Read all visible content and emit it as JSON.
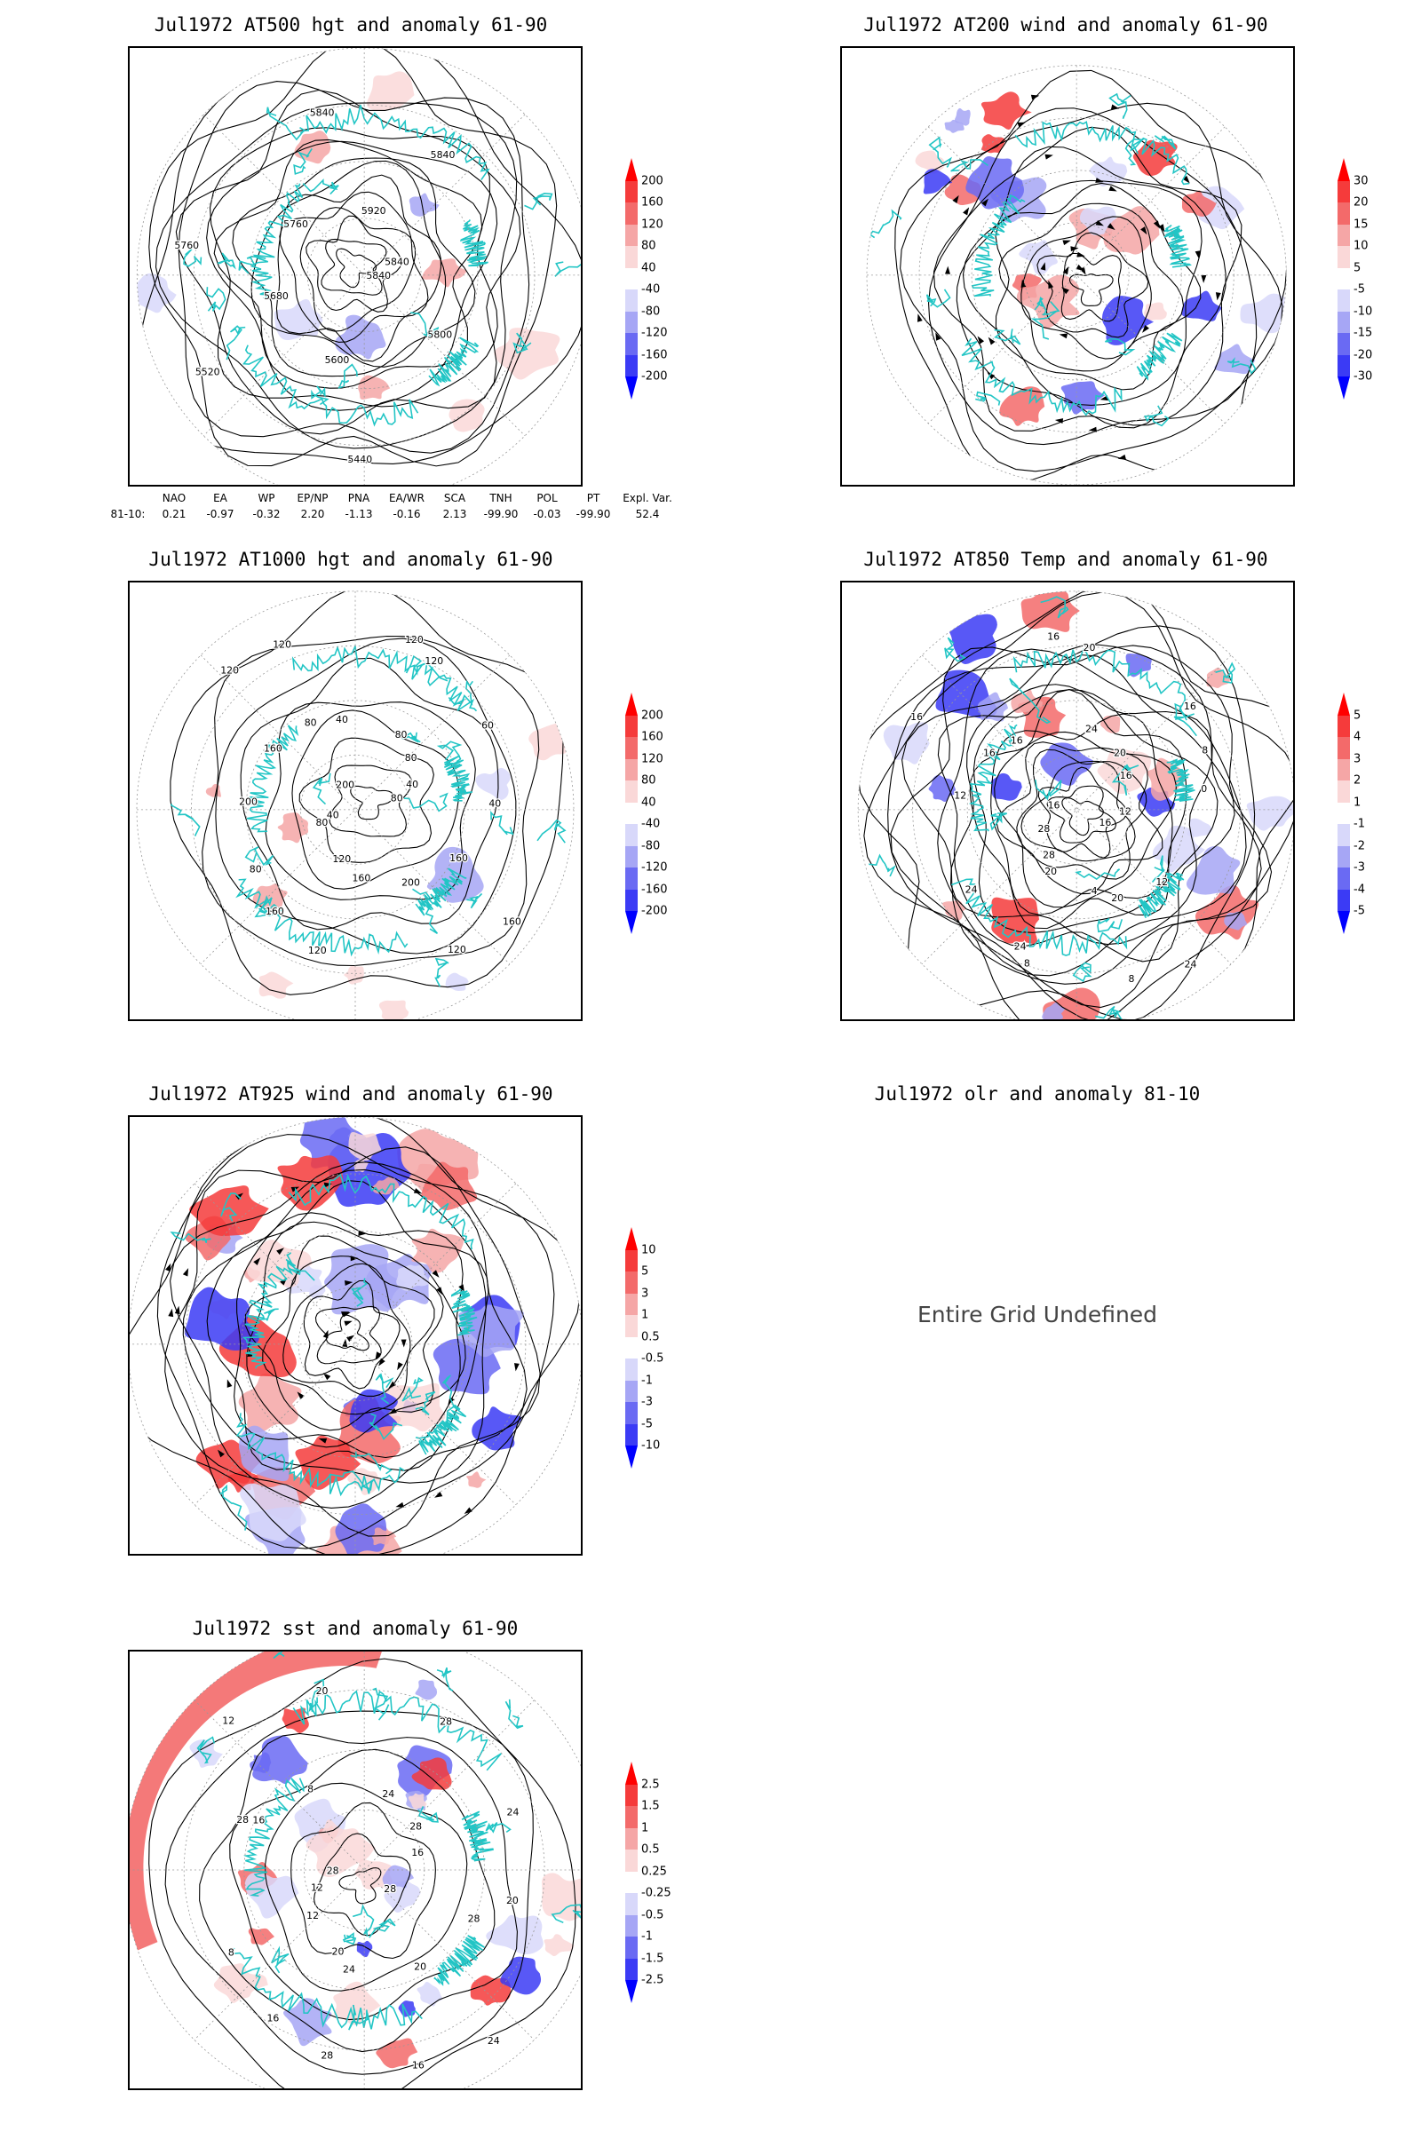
{
  "panels": [
    {
      "id": "at500",
      "title": "Jul1972 AT500 hgt and anomaly 61-90",
      "contour_labels": [
        "5840",
        "5800",
        "5440",
        "5600",
        "5520",
        "5680",
        "5760",
        "5760",
        "5840",
        "5920",
        "5840",
        "5840"
      ],
      "colorbar": [
        "200",
        "160",
        "120",
        "80",
        "40",
        "-40",
        "-80",
        "-120",
        "-160",
        "-200"
      ]
    },
    {
      "id": "at200",
      "title": "Jul1972 AT200 wind and anomaly 61-90",
      "colorbar": [
        "30",
        "20",
        "15",
        "10",
        "5",
        "-5",
        "-10",
        "-15",
        "-20",
        "-30"
      ]
    },
    {
      "id": "at1000",
      "title": "Jul1972 AT1000 hgt and anomaly 61-90",
      "contour_labels": [
        "80",
        "160",
        "160",
        "200",
        "120",
        "160",
        "120",
        "120",
        "160",
        "80",
        "80",
        "40",
        "200",
        "200",
        "160",
        "120",
        "80",
        "120",
        "40",
        "120",
        "80",
        "120",
        "80",
        "60",
        "40",
        "40"
      ],
      "colorbar": [
        "200",
        "160",
        "120",
        "80",
        "40",
        "-40",
        "-80",
        "-120",
        "-160",
        "-200"
      ]
    },
    {
      "id": "at850",
      "title": "Jul1972 AT850 Temp and anomaly 61-90",
      "contour_labels": [
        "16",
        "12",
        "24",
        "20",
        "8",
        "4",
        "8",
        "20",
        "24",
        "28",
        "24",
        "28",
        "12",
        "16",
        "16",
        "16",
        "16",
        "16",
        "24",
        "20",
        "20",
        "16",
        "16",
        "8",
        "12",
        "0"
      ],
      "colorbar": [
        "5",
        "4",
        "3",
        "2",
        "1",
        "-1",
        "-2",
        "-3",
        "-4",
        "-5"
      ]
    },
    {
      "id": "at925",
      "title": "Jul1972 AT925 wind and anomaly 61-90",
      "colorbar": [
        "10",
        "5",
        "3",
        "1",
        "0.5",
        "-0.5",
        "-1",
        "-3",
        "-5",
        "-10"
      ]
    },
    {
      "id": "olr",
      "title": "Jul1972 olr and anomaly 81-10",
      "message": "Entire Grid Undefined"
    },
    {
      "id": "sst",
      "title": "Jul1972 sst and anomaly 61-90",
      "contour_labels": [
        "28",
        "28",
        "24",
        "20",
        "16",
        "24",
        "28",
        "20",
        "16",
        "12",
        "8",
        "12",
        "28",
        "28",
        "16",
        "12",
        "8",
        "20",
        "24",
        "28",
        "28",
        "24",
        "16",
        "20"
      ],
      "colorbar": [
        "2.5",
        "1.5",
        "1",
        "0.5",
        "0.25",
        "-0.25",
        "-0.5",
        "-1",
        "-1.5",
        "-2.5"
      ]
    }
  ],
  "indices": {
    "label": "81-10:",
    "headers": [
      "NAO",
      "EA",
      "WP",
      "EP/NP",
      "PNA",
      "EA/WR",
      "SCA",
      "TNH",
      "POL",
      "PT",
      "Expl. Var."
    ],
    "values": [
      "0.21",
      "-0.97",
      "-0.32",
      "2.20",
      "-1.13",
      "-0.16",
      "2.13",
      "-99.90",
      "-0.03",
      "-99.90",
      "52.4"
    ]
  },
  "colors": {
    "coast": "#22c5c5",
    "contour": "#000000",
    "anomaly_scale": [
      "#ff0000",
      "#f53b3b",
      "#f36a6a",
      "#f5a6a6",
      "#fad8d8",
      "#ffffff",
      "#d8d8fa",
      "#a6a6f5",
      "#6a6af3",
      "#3b3bf5",
      "#0000ff"
    ]
  }
}
